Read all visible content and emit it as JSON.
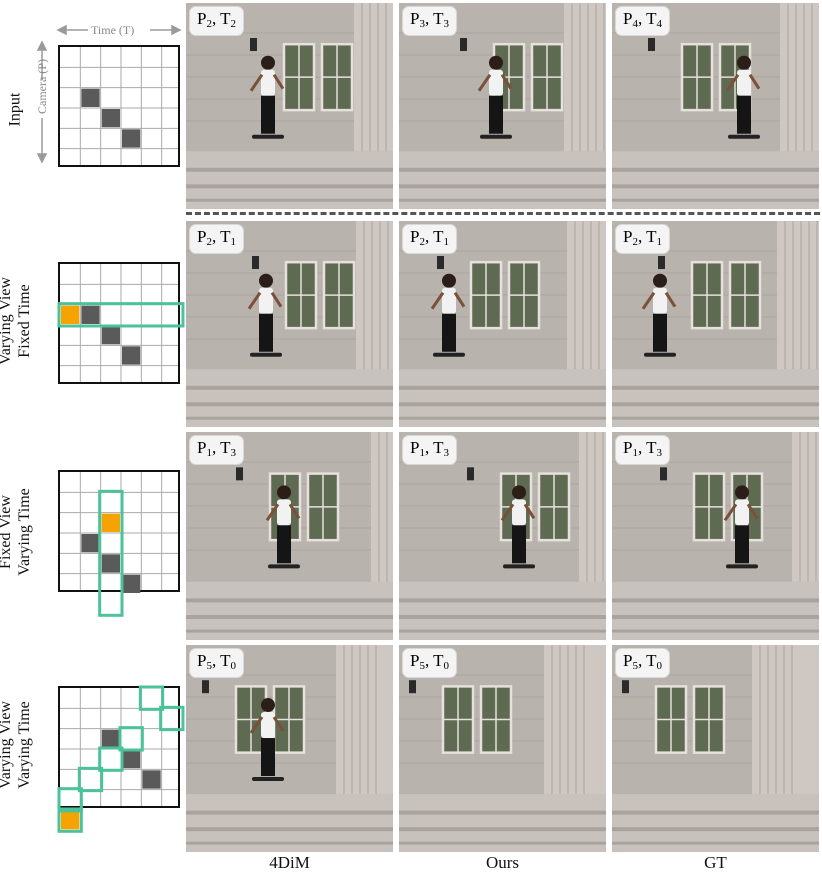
{
  "axes": {
    "time_label": "Time (T)",
    "camera_label": "Camera (P)"
  },
  "rows": [
    {
      "label_lines": [
        "Input"
      ],
      "tags": [
        {
          "p": "2",
          "t": "2"
        },
        {
          "p": "3",
          "t": "3"
        },
        {
          "p": "4",
          "t": "4"
        }
      ]
    },
    {
      "label_lines": [
        "Varying View",
        "Fixed Time"
      ],
      "tags": [
        {
          "p": "2",
          "t": "1"
        },
        {
          "p": "2",
          "t": "1"
        },
        {
          "p": "2",
          "t": "1"
        }
      ]
    },
    {
      "label_lines": [
        "Fixed View",
        "Varying Time"
      ],
      "tags": [
        {
          "p": "1",
          "t": "3"
        },
        {
          "p": "1",
          "t": "3"
        },
        {
          "p": "1",
          "t": "3"
        }
      ]
    },
    {
      "label_lines": [
        "Varying View",
        "Varying Time"
      ],
      "tags": [
        {
          "p": "5",
          "t": "0"
        },
        {
          "p": "5",
          "t": "0"
        },
        {
          "p": "5",
          "t": "0"
        }
      ]
    }
  ],
  "columns": [
    "4DiM",
    "Ours",
    "GT"
  ],
  "colors": {
    "gray_cell": "#5a5a5a",
    "orange_cell": "#f5a300",
    "green_outline": "#4cc29a"
  },
  "grids": [
    {
      "gray": [
        [
          2,
          1
        ],
        [
          3,
          2
        ],
        [
          4,
          3
        ]
      ],
      "orange": [],
      "green": []
    },
    {
      "gray": [
        [
          2,
          1
        ],
        [
          3,
          2
        ],
        [
          4,
          3
        ]
      ],
      "orange": [
        [
          2,
          0
        ]
      ],
      "green": [
        [
          2,
          0,
          6,
          1
        ]
      ]
    },
    {
      "gray": [
        [
          3,
          1
        ],
        [
          4,
          2
        ],
        [
          5,
          3
        ]
      ],
      "orange": [
        [
          2,
          2
        ]
      ],
      "green": [
        [
          1,
          2,
          1,
          6
        ]
      ]
    },
    {
      "gray": [
        [
          2,
          2
        ],
        [
          3,
          3
        ],
        [
          4,
          4
        ]
      ],
      "orange": [
        [
          6,
          0
        ]
      ],
      "green": [
        [
          0,
          4
        ],
        [
          1,
          5
        ],
        [
          2,
          3
        ],
        [
          3,
          2
        ],
        [
          4,
          1
        ],
        [
          5,
          0
        ],
        [
          6,
          0
        ]
      ]
    }
  ]
}
